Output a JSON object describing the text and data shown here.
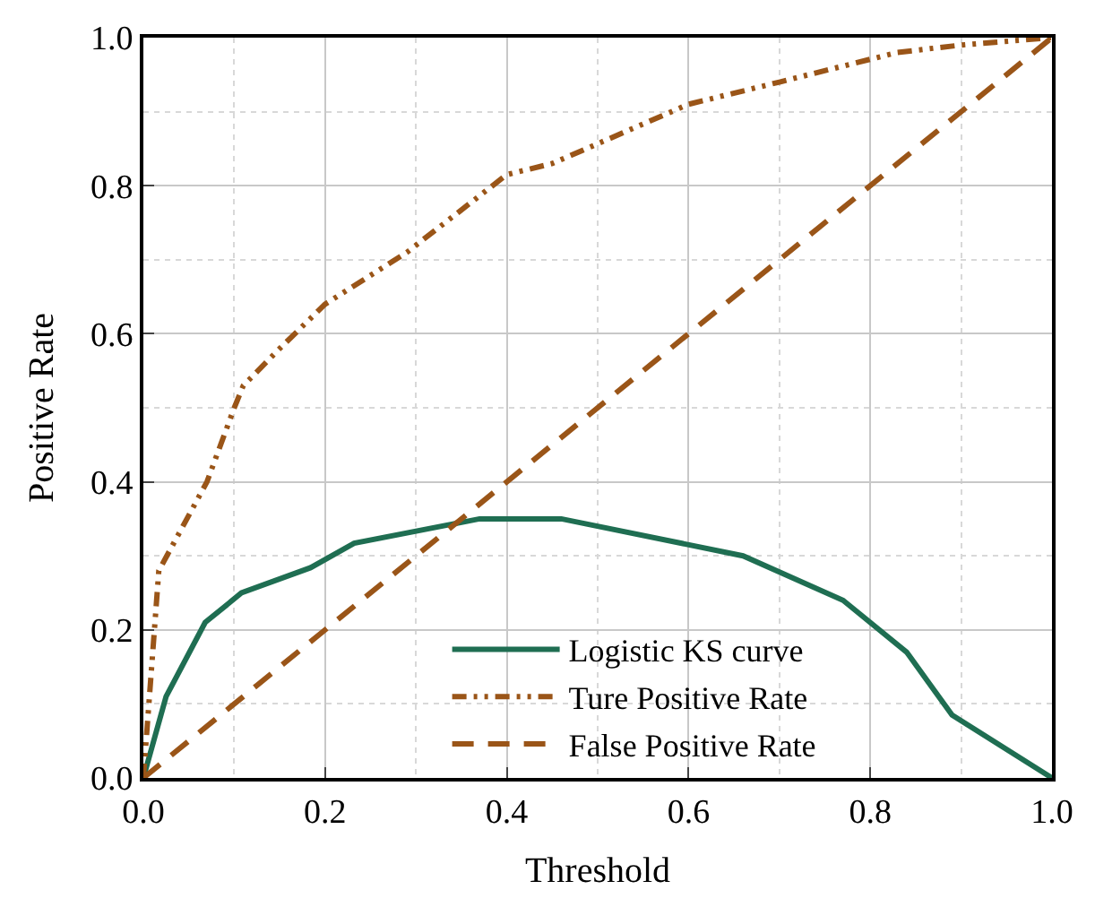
{
  "chart_data": {
    "type": "line",
    "xlabel": "Threshold",
    "ylabel": "Positive Rate",
    "xlim": [
      0,
      1
    ],
    "ylim": [
      0,
      1
    ],
    "xticks": [
      {
        "value": 0,
        "label": "0.0"
      },
      0.2,
      0.4,
      0.6,
      0.8,
      {
        "value": 1,
        "label": "1.0"
      }
    ],
    "yticks": [
      {
        "value": 0,
        "label": "0.0"
      },
      0.2,
      0.4,
      0.6,
      0.8,
      {
        "value": 1,
        "label": "1.0"
      }
    ],
    "grid": true,
    "legend": "bottom right",
    "series": [
      {
        "name": "Logistic KS curve",
        "color": "#1f6e52",
        "line_style": "solid",
        "x": [
          0,
          0.025,
          0.068,
          0.108,
          0.184,
          0.232,
          0.37,
          0.46,
          0.66,
          0.77,
          0.84,
          0.89,
          1.0
        ],
        "values": [
          0,
          0.11,
          0.21,
          0.25,
          0.284,
          0.317,
          0.35,
          0.35,
          0.3,
          0.24,
          0.17,
          0.085,
          0
        ]
      },
      {
        "name": "Ture Positive Rate",
        "color": "#9a5518",
        "line_style": "dashdotdot",
        "x": [
          0,
          0.017,
          0.07,
          0.1,
          0.11,
          0.15,
          0.2,
          0.29,
          0.4,
          0.45,
          0.6,
          0.7,
          0.83,
          0.9,
          1.0
        ],
        "values": [
          0,
          0.28,
          0.4,
          0.5,
          0.53,
          0.58,
          0.64,
          0.71,
          0.815,
          0.83,
          0.91,
          0.94,
          0.98,
          0.99,
          1.0
        ]
      },
      {
        "name": "False Positive Rate",
        "color": "#9a5518",
        "line_style": "dashed",
        "x": [
          0,
          1
        ],
        "values": [
          0,
          1
        ]
      }
    ]
  }
}
